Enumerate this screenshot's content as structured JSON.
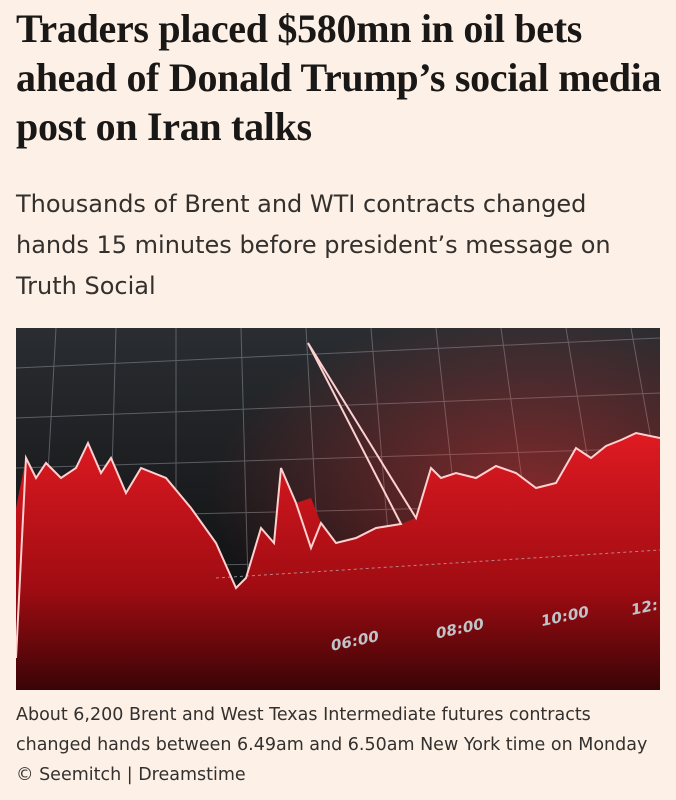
{
  "headline": "Traders placed $580mn in oil bets ahead of Donald Trump’s social media post on Iran talks",
  "standfirst": "Thousands of Brent and WTI contracts changed hands 15 minutes before president’s message on Truth Social",
  "image": {
    "time_labels": [
      "06:00",
      "08:00",
      "10:00",
      "12:"
    ]
  },
  "caption": "About 6,200 Brent and West Texas Intermediate futures contracts changed hands between 6.49am and 6.50am New York time on Monday © Seemitch | Dreamstime"
}
